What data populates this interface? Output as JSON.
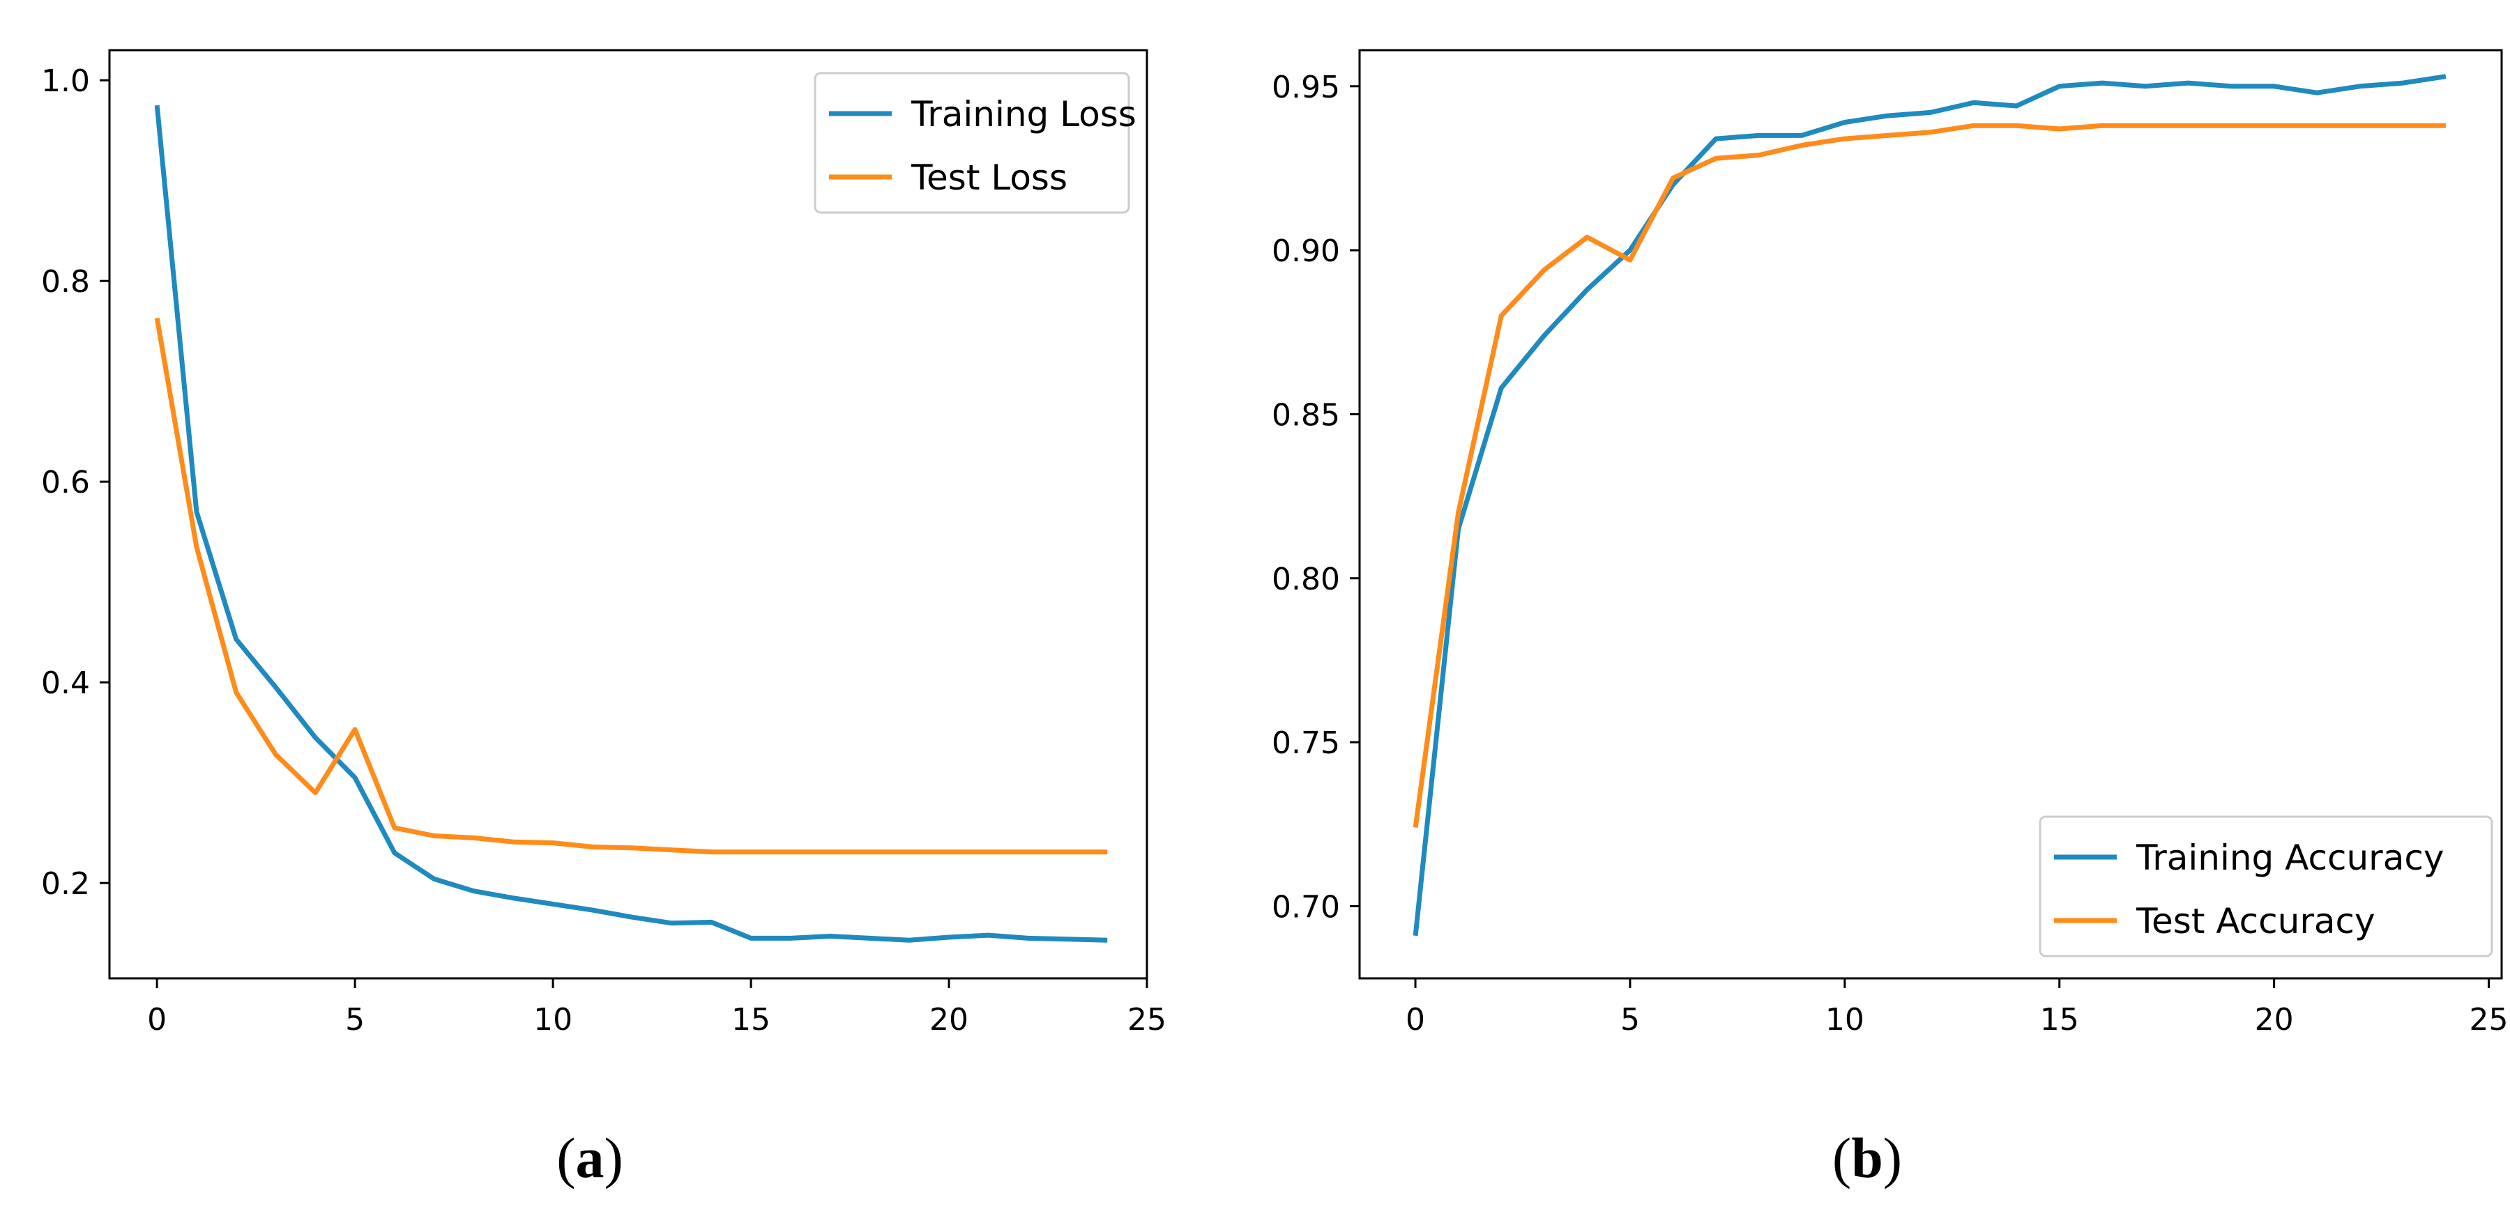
{
  "captions": {
    "a": {
      "open": "(",
      "letter": "a",
      "close": ")"
    },
    "b": {
      "open": "(",
      "letter": "b",
      "close": ")"
    }
  },
  "colors": {
    "train": "#1f8ac0",
    "test": "#ff8c1a",
    "axis": "#000000",
    "legend_border": "#cccccc"
  },
  "chart_data": [
    {
      "type": "line",
      "title": "",
      "xlabel": "",
      "ylabel": "",
      "xlim": [
        -1.2,
        25.0
      ],
      "ylim": [
        0.105,
        1.03
      ],
      "xticks": [
        0,
        5,
        10,
        15,
        20,
        25
      ],
      "xtick_labels": [
        "0",
        "5",
        "10",
        "15",
        "20",
        "25"
      ],
      "yticks": [
        0.2,
        0.4,
        0.6,
        0.8,
        1.0
      ],
      "ytick_labels": [
        "0.2",
        "0.4",
        "0.6",
        "0.8",
        "1.0"
      ],
      "legend_position": "upper-right",
      "x": [
        0,
        1,
        2,
        3,
        4,
        5,
        6,
        7,
        8,
        9,
        10,
        11,
        12,
        13,
        14,
        15,
        16,
        17,
        18,
        19,
        20,
        21,
        22,
        23,
        24
      ],
      "series": [
        {
          "name": "Training Loss",
          "color_key": "train",
          "values": [
            0.975,
            0.57,
            0.443,
            0.395,
            0.345,
            0.305,
            0.23,
            0.204,
            0.192,
            0.185,
            0.179,
            0.173,
            0.166,
            0.16,
            0.161,
            0.145,
            0.145,
            0.147,
            0.145,
            0.143,
            0.146,
            0.148,
            0.145,
            0.144,
            0.143
          ]
        },
        {
          "name": "Test Loss",
          "color_key": "test",
          "values": [
            0.763,
            0.535,
            0.39,
            0.328,
            0.29,
            0.353,
            0.255,
            0.247,
            0.245,
            0.241,
            0.24,
            0.236,
            0.235,
            0.233,
            0.231,
            0.231,
            0.231,
            0.231,
            0.231,
            0.231,
            0.231,
            0.231,
            0.231,
            0.231,
            0.231
          ]
        }
      ]
    },
    {
      "type": "line",
      "title": "",
      "xlabel": "",
      "ylabel": "",
      "xlim": [
        -1.3,
        25.3
      ],
      "ylim": [
        0.678,
        0.961
      ],
      "xticks": [
        0,
        5,
        10,
        15,
        20,
        25
      ],
      "xtick_labels": [
        "0",
        "5",
        "10",
        "15",
        "20",
        "25"
      ],
      "yticks": [
        0.7,
        0.75,
        0.8,
        0.85,
        0.9,
        0.95
      ],
      "ytick_labels": [
        "0.70",
        "0.75",
        "0.80",
        "0.85",
        "0.90",
        "0.95"
      ],
      "legend_position": "lower-right",
      "x": [
        0,
        1,
        2,
        3,
        4,
        5,
        6,
        7,
        8,
        9,
        10,
        11,
        12,
        13,
        14,
        15,
        16,
        17,
        18,
        19,
        20,
        21,
        22,
        23,
        24
      ],
      "series": [
        {
          "name": "Training Accuracy",
          "color_key": "train",
          "values": [
            0.691,
            0.815,
            0.858,
            0.874,
            0.888,
            0.9,
            0.92,
            0.934,
            0.935,
            0.935,
            0.939,
            0.941,
            0.942,
            0.945,
            0.944,
            0.95,
            0.951,
            0.95,
            0.951,
            0.95,
            0.95,
            0.948,
            0.95,
            0.951,
            0.953
          ]
        },
        {
          "name": "Test Accuracy",
          "color_key": "test",
          "values": [
            0.724,
            0.82,
            0.88,
            0.894,
            0.904,
            0.897,
            0.922,
            0.928,
            0.929,
            0.932,
            0.934,
            0.935,
            0.936,
            0.938,
            0.938,
            0.937,
            0.938,
            0.938,
            0.938,
            0.938,
            0.938,
            0.938,
            0.938,
            0.938,
            0.938
          ]
        }
      ]
    }
  ]
}
